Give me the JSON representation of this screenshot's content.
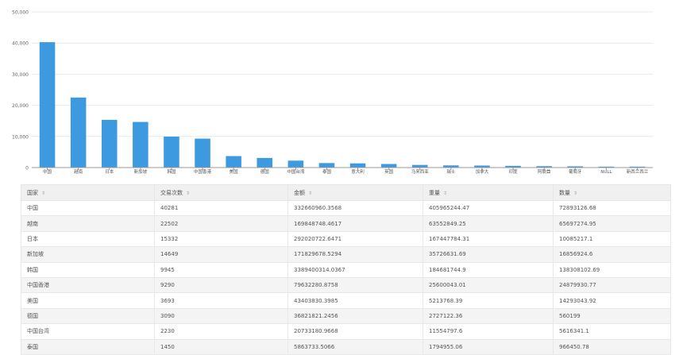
{
  "chart_data": {
    "type": "bar",
    "categories": [
      "中国",
      "越南",
      "日本",
      "新加坡",
      "韩国",
      "中国香港",
      "美国",
      "德国",
      "中国台湾",
      "泰国",
      "意大利",
      "英国",
      "马来西亚",
      "瑞士",
      "加拿大",
      "印度",
      "阿联酋",
      "葡萄牙",
      "NULL",
      "新西兰西兰"
    ],
    "values": [
      40281,
      22502,
      15332,
      14649,
      9945,
      9290,
      3693,
      3090,
      2230,
      1450,
      1350,
      1150,
      850,
      700,
      650,
      550,
      450,
      400,
      300,
      300
    ],
    "ylim": [
      0,
      50000
    ],
    "yticks": [
      "0",
      "10,000",
      "20,000",
      "30,000",
      "40,000",
      "50,000"
    ],
    "color": "#3d9ae0",
    "grid": true
  },
  "table": {
    "headers": [
      "国家",
      "交易次数",
      "金额",
      "重量",
      "数量"
    ],
    "rows": [
      [
        "中国",
        "40281",
        "332660960.3568",
        "405965244.47",
        "72893126.68"
      ],
      [
        "越南",
        "22502",
        "169848748.4617",
        "63552849.25",
        "65697274.95"
      ],
      [
        "日本",
        "15332",
        "292020722.6471",
        "167447784.31",
        "10085217.1"
      ],
      [
        "新加坡",
        "14649",
        "171829678.5294",
        "35726631.69",
        "16856924.6"
      ],
      [
        "韩国",
        "9945",
        "3389400314.0367",
        "184681744.9",
        "138308102.69"
      ],
      [
        "中国香港",
        "9290",
        "79632280.8758",
        "25600043.01",
        "24879930.77"
      ],
      [
        "美国",
        "3693",
        "43403830.3985",
        "5213768.39",
        "14293043.92"
      ],
      [
        "德国",
        "3090",
        "36821821.2456",
        "2727122.36",
        "560199"
      ],
      [
        "中国台湾",
        "2230",
        "20733180.9668",
        "11554797.6",
        "5616341.1"
      ],
      [
        "泰国",
        "1450",
        "5863733.5066",
        "1794955.06",
        "966450.78"
      ]
    ]
  }
}
